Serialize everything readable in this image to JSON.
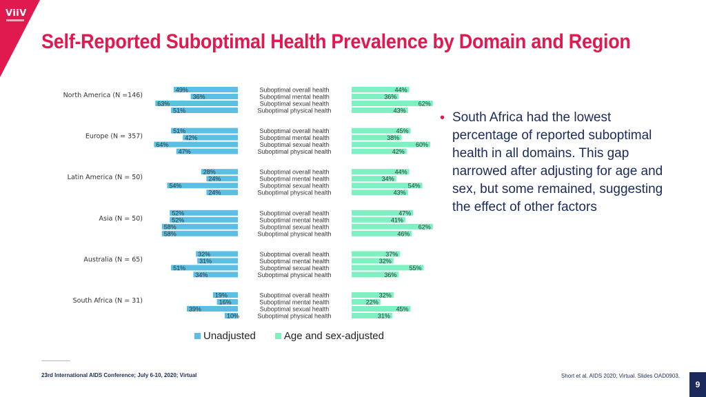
{
  "brand": {
    "logo_text": "ViiV",
    "accent": "#e0194f",
    "navy": "#1b2a5a"
  },
  "title": "Self-Reported Suboptimal Health Prevalence by Domain and Region",
  "chart_data": {
    "type": "bar",
    "orientation": "horizontal-butterfly",
    "domains": [
      "Suboptimal overall health",
      "Suboptimal mental health",
      "Suboptimal sexual health",
      "Suboptimal physical health"
    ],
    "regions": [
      {
        "name": "North America (N =146)",
        "unadjusted": [
          49,
          36,
          63,
          51
        ],
        "adjusted": [
          44,
          36,
          62,
          43
        ]
      },
      {
        "name": "Europe (N = 357)",
        "unadjusted": [
          51,
          42,
          64,
          47
        ],
        "adjusted": [
          45,
          38,
          60,
          42
        ]
      },
      {
        "name": "Latin America (N = 50)",
        "unadjusted": [
          28,
          24,
          54,
          24
        ],
        "adjusted": [
          44,
          34,
          54,
          43
        ]
      },
      {
        "name": "Asia (N = 50)",
        "unadjusted": [
          52,
          52,
          58,
          58
        ],
        "adjusted": [
          47,
          41,
          62,
          46
        ]
      },
      {
        "name": "Australia (N = 65)",
        "unadjusted": [
          32,
          31,
          51,
          34
        ],
        "adjusted": [
          37,
          32,
          55,
          36
        ]
      },
      {
        "name": "South Africa (N = 31)",
        "unadjusted": [
          19,
          16,
          39,
          10
        ],
        "adjusted": [
          32,
          22,
          45,
          31
        ]
      }
    ],
    "series": [
      {
        "name": "Unadjusted",
        "color": "#5bbfe3"
      },
      {
        "name": "Age and sex-adjusted",
        "color": "#7ff0c2"
      }
    ],
    "value_suffix": "%",
    "xlim": [
      0,
      100
    ],
    "grid": false,
    "legend_position": "bottom"
  },
  "bullet": "South Africa had the lowest percentage of reported suboptimal health in all domains. This gap narrowed after adjusting for age and sex, but some remained, suggesting the effect of other factors",
  "footer": {
    "left": "23rd International AIDS Conference; July 6-10, 2020; Virtual",
    "right": "Short et al. AIDS 2020; Virtual. Slides OAD0903.",
    "page": "9"
  }
}
